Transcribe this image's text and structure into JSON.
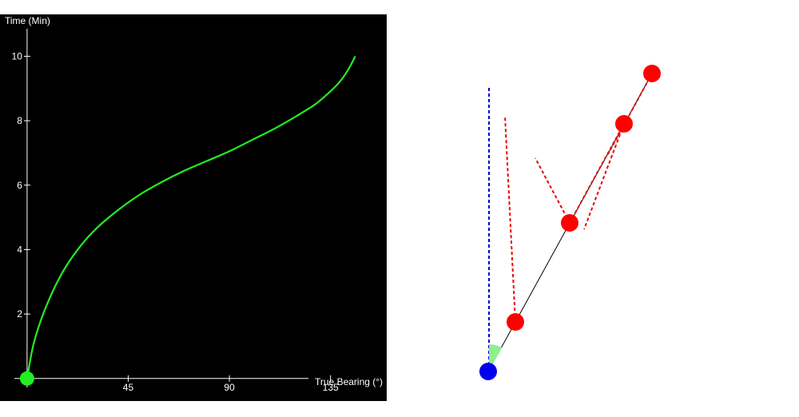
{
  "chart_data": {
    "type": "line",
    "title": "",
    "xlabel": "True Bearing (°)",
    "ylabel": "Time (Min)",
    "xlim": [
      -6,
      160
    ],
    "ylim": [
      -0.7,
      11.3
    ],
    "xticks": [
      45,
      90,
      135
    ],
    "yticks": [
      2,
      4,
      6,
      8,
      10
    ],
    "grid": false,
    "background": "#000000",
    "line_color": "#22ee22",
    "marker_color": "#22ee22",
    "series": [
      {
        "x": [
          0,
          3,
          8,
          15,
          22,
          30,
          40,
          50,
          60,
          70,
          80,
          90,
          100,
          110,
          120,
          128,
          134,
          139,
          143,
          146
        ],
        "y": [
          0,
          1.1,
          2.15,
          3.2,
          3.95,
          4.6,
          5.2,
          5.7,
          6.1,
          6.45,
          6.75,
          7.05,
          7.4,
          7.75,
          8.15,
          8.5,
          8.85,
          9.2,
          9.6,
          10.0
        ]
      }
    ],
    "marker": {
      "x": 0,
      "y": 0
    }
  },
  "diagram": {
    "sight_line_color": "#000000",
    "north_line_color": "#0000cc",
    "bearing_line_color": "#ee0000",
    "observer_color": "#0000ee",
    "target_color": "#ff0000",
    "angle_color": "#90ee90"
  }
}
